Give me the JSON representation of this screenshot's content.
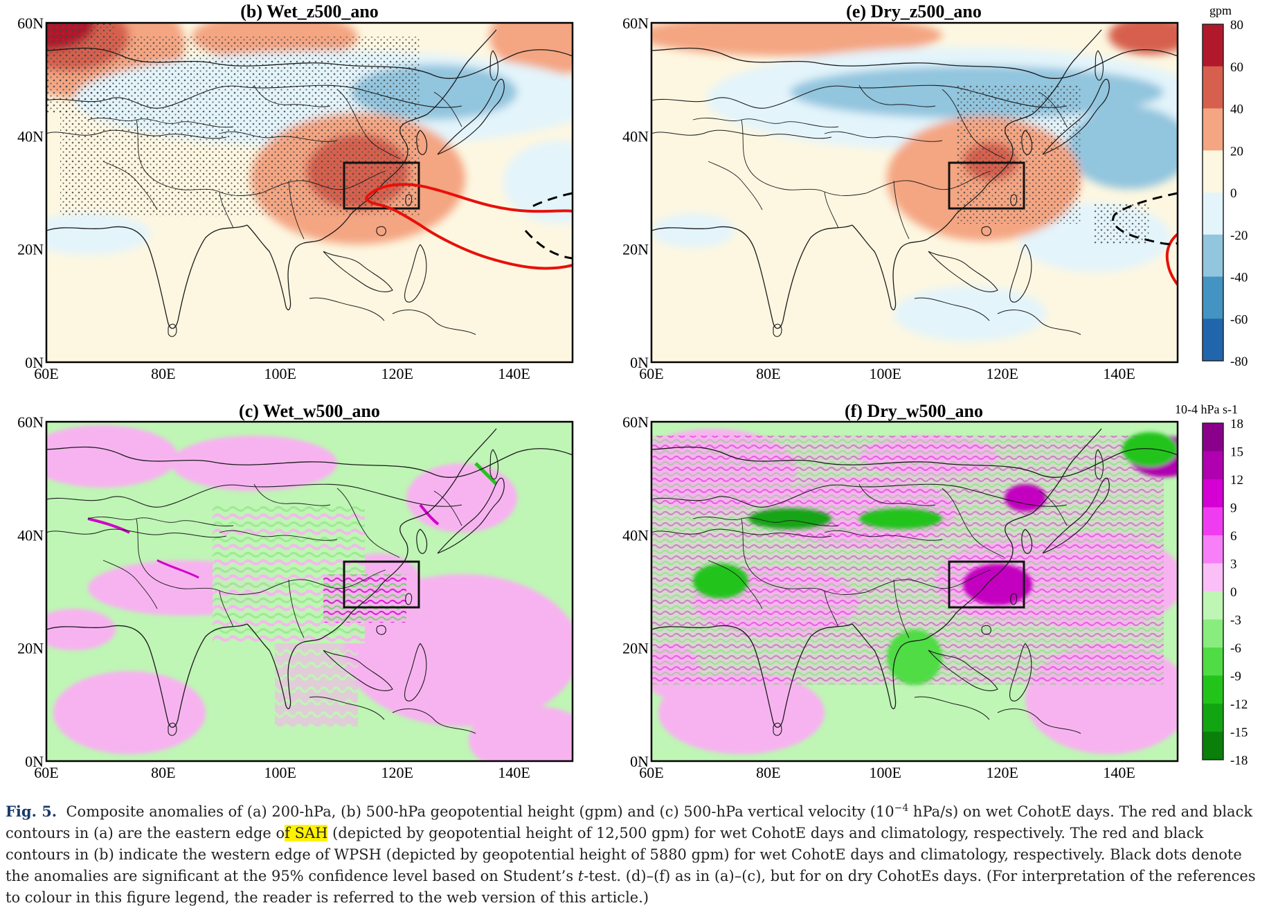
{
  "panels": [
    {
      "id": "b",
      "title": "(b) Wet_z500_ano",
      "variable": "z500",
      "regime": "wet"
    },
    {
      "id": "e",
      "title": "(e) Dry_z500_ano",
      "variable": "z500",
      "regime": "dry"
    },
    {
      "id": "c",
      "title": "(c) Wet_w500_ano",
      "variable": "w500",
      "regime": "wet"
    },
    {
      "id": "f",
      "title": "(f) Dry_w500_ano",
      "variable": "w500",
      "regime": "dry"
    }
  ],
  "axes": {
    "lat_ticks": [
      "60N",
      "40N",
      "20N",
      "0N"
    ],
    "lon_ticks": [
      "60E",
      "80E",
      "100E",
      "120E",
      "140E"
    ],
    "lon_range": [
      60,
      150
    ],
    "lat_range": [
      0,
      60
    ]
  },
  "colorbars": {
    "z500": {
      "unit": "gpm",
      "ticks": [
        "80",
        "60",
        "40",
        "20",
        "0",
        "-20",
        "-40",
        "-60",
        "-80"
      ],
      "colors": [
        "#b2182b",
        "#d6604d",
        "#f4a582",
        "#fdf7e1",
        "#e3f4fb",
        "#92c5de",
        "#4393c3",
        "#2166ac"
      ]
    },
    "w500": {
      "unit": "10-4 hPa s-1",
      "ticks": [
        "18",
        "15",
        "12",
        "9",
        "6",
        "3",
        "0",
        "-3",
        "-6",
        "-9",
        "-12",
        "-15",
        "-18"
      ],
      "colors": [
        "#8b008b",
        "#b000b0",
        "#d400d4",
        "#f03cf0",
        "#f77ff7",
        "#fbbff8",
        "#bff5b5",
        "#88ec7e",
        "#4fdc44",
        "#22c41a",
        "#12a512",
        "#0a7f0a"
      ]
    }
  },
  "colors": {
    "wpsh_wet": "#e8100a",
    "climatology": "#000000",
    "box": "#111111",
    "coast": "#1a1a1a",
    "z500_zero": "#fdf7e1",
    "w500_pos": "#f7b3f0",
    "w500_neg": "#bff5b5"
  },
  "caption": {
    "label": "Fig. 5.",
    "text_1": "Composite anomalies of (a) 200-hPa, (b) 500-hPa geopotential height (gpm) and (c) 500-hPa vertical velocity (10",
    "sup": "−4",
    "text_2": " hPa/s) on wet CohotE days. The red and black contours in (a) are the eastern edge o",
    "text_3": "f ",
    "highlight": "SAH",
    "text_4": " (depicted by geopotential height of 12,500 gpm) for wet CohotE days and climatology, respectively. The red and black contours in (b) indicate the western edge of WPSH (depicted by geopotential height of 5880 gpm) for wet CohotE days and climatology, respectively. Black dots denote the anomalies are significant at the 95% confidence level based on Student’s ",
    "italic": "t",
    "text_5": "-test. (d)–(f) as in (a)–(c), but for on dry CohotEs days. (For interpretation of the references to colour in this figure legend, the reader is referred to the web version of this article.)"
  }
}
